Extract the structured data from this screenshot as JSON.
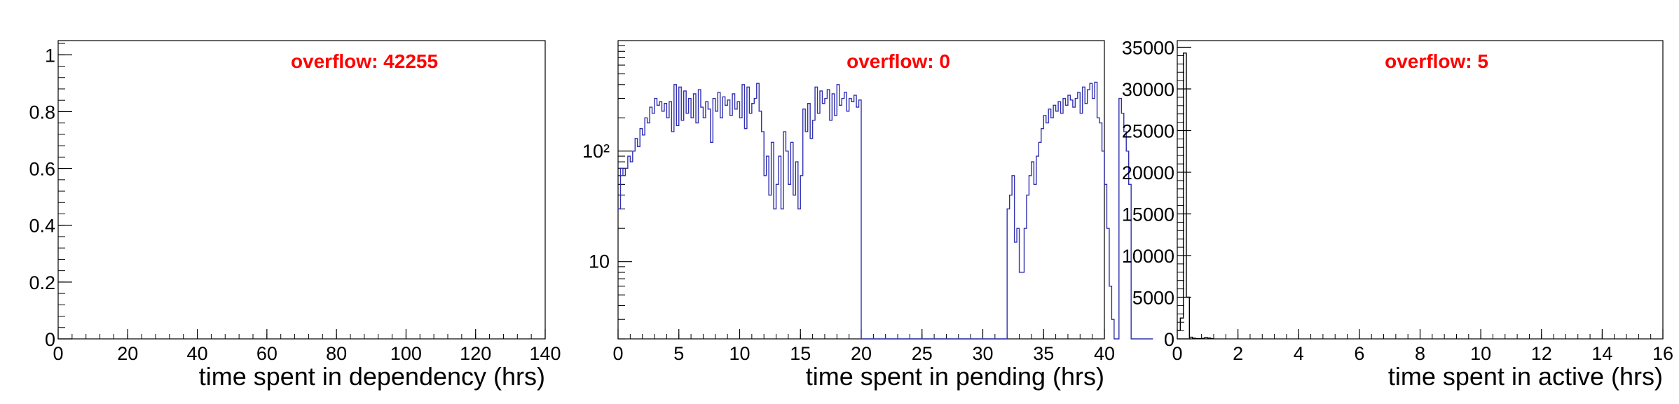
{
  "chart_data": [
    {
      "type": "histogram",
      "xlabel": "time spent in dependency (hrs)",
      "ylabel": "",
      "annotation": "overflow: 42255",
      "annotation_color": "#ff0000",
      "line_color": "#000000",
      "log_y": false,
      "xlim": [
        0,
        140
      ],
      "ylim": [
        0,
        1.05
      ],
      "x_ticks": [
        0,
        20,
        40,
        60,
        80,
        100,
        120,
        140
      ],
      "x_tick_labels": [
        "0",
        "20",
        "40",
        "60",
        "80",
        "100",
        "120",
        "140"
      ],
      "y_ticks": [
        0,
        0.2,
        0.4,
        0.6,
        0.8,
        1
      ],
      "y_tick_labels": [
        "0",
        "0.2",
        "0.4",
        "0.6",
        "0.8",
        "1"
      ],
      "bins": []
    },
    {
      "type": "histogram",
      "xlabel": "time spent in pending (hrs)",
      "ylabel": "",
      "annotation": "overflow: 0",
      "annotation_color": "#ff0000",
      "line_color": "#3030b0",
      "log_y": true,
      "xlim": [
        0,
        40
      ],
      "ylim": [
        2,
        1000
      ],
      "x_ticks": [
        0,
        5,
        10,
        15,
        20,
        25,
        30,
        35,
        40
      ],
      "x_tick_labels": [
        "0",
        "5",
        "10",
        "15",
        "20",
        "25",
        "30",
        "35",
        "40"
      ],
      "y_ticks": [
        10,
        100
      ],
      "y_tick_labels": [
        "10",
        "10²"
      ],
      "bin_width": 0.2,
      "bin_values": [
        30,
        70,
        60,
        70,
        90,
        80,
        100,
        130,
        110,
        160,
        140,
        200,
        180,
        250,
        220,
        300,
        260,
        280,
        230,
        270,
        200,
        280,
        150,
        400,
        170,
        380,
        190,
        350,
        220,
        300,
        200,
        330,
        180,
        360,
        250,
        200,
        280,
        240,
        120,
        300,
        230,
        340,
        200,
        310,
        260,
        290,
        210,
        330,
        240,
        280,
        200,
        400,
        160,
        380,
        220,
        270,
        300,
        410,
        230,
        150,
        60,
        90,
        40,
        120,
        30,
        50,
        90,
        30,
        150,
        100,
        50,
        120,
        40,
        80,
        30,
        60,
        240,
        150,
        270,
        130,
        190,
        380,
        220,
        350,
        270,
        300,
        360,
        190,
        330,
        210,
        400,
        260,
        300,
        340,
        230,
        300,
        280,
        320,
        250,
        290,
        0,
        0,
        0,
        0,
        0,
        0,
        0,
        0,
        0,
        0,
        0,
        0,
        0,
        0,
        0,
        0,
        0,
        0,
        0,
        0,
        0,
        0,
        0,
        0,
        0,
        0,
        0,
        0,
        0,
        0,
        0,
        0,
        0,
        0,
        0,
        0,
        0,
        0,
        0,
        0,
        0,
        0,
        0,
        0,
        0,
        0,
        0,
        0,
        0,
        0,
        0,
        0,
        0,
        0,
        0,
        0,
        0,
        0,
        0,
        0,
        30,
        40,
        60,
        15,
        20,
        8,
        8,
        20,
        40,
        60,
        80,
        50,
        90,
        120,
        160,
        210,
        180,
        240,
        200,
        260,
        230,
        280,
        220,
        300,
        260,
        320,
        290,
        250,
        300,
        340,
        220,
        380,
        270,
        360,
        410,
        300,
        420,
        200,
        180,
        100,
        50,
        20,
        6,
        3,
        2,
        0,
        300,
        220,
        150,
        100,
        50,
        0,
        0,
        0,
        0,
        0,
        0,
        0,
        0,
        0
      ]
    },
    {
      "type": "histogram",
      "xlabel": "time spent in active (hrs)",
      "ylabel": "",
      "annotation": "overflow: 5",
      "annotation_color": "#ff0000",
      "line_color": "#000000",
      "log_y": false,
      "xlim": [
        0,
        16
      ],
      "ylim": [
        0,
        35800
      ],
      "x_ticks": [
        0,
        2,
        4,
        6,
        8,
        10,
        12,
        14,
        16
      ],
      "x_tick_labels": [
        "0",
        "2",
        "4",
        "6",
        "8",
        "10",
        "12",
        "14",
        "16"
      ],
      "y_ticks": [
        0,
        5000,
        10000,
        15000,
        20000,
        25000,
        30000,
        35000
      ],
      "y_tick_labels": [
        "0",
        "5000",
        "10000",
        "15000",
        "20000",
        "25000",
        "30000",
        "35000"
      ],
      "bin_width": 0.1,
      "bin_values": [
        1000,
        2500,
        34300,
        5000,
        200,
        80,
        40,
        30,
        60,
        150,
        100,
        20
      ]
    }
  ]
}
